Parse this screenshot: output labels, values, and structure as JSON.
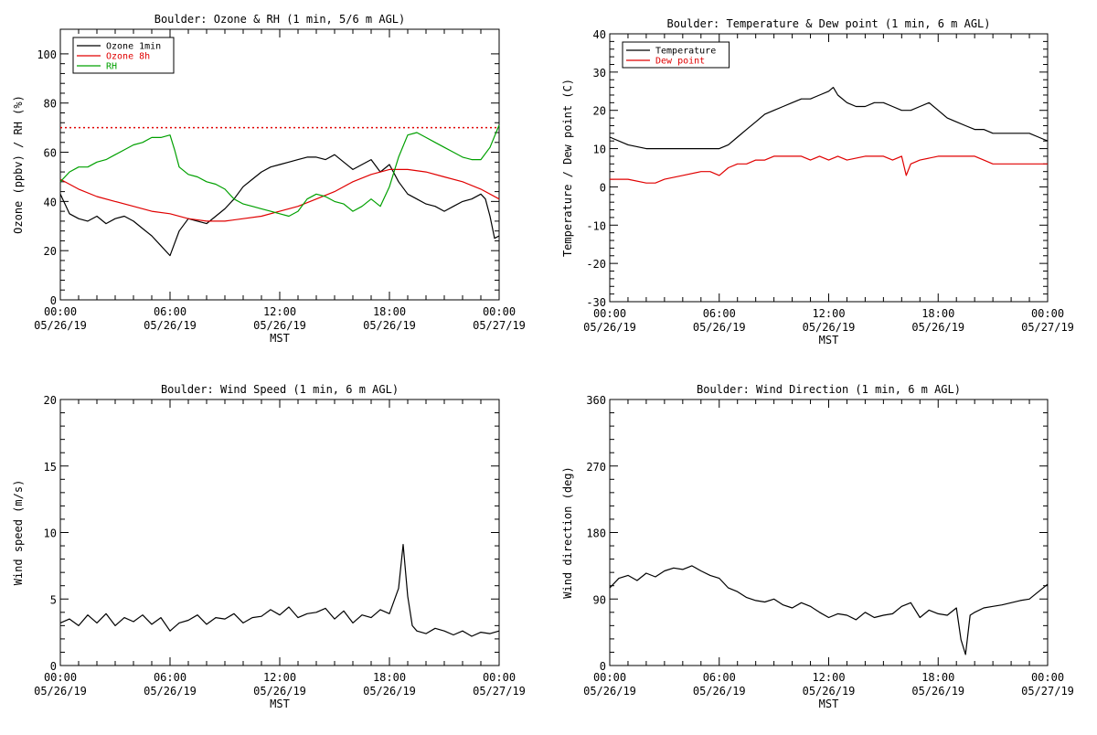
{
  "chart_data": [
    {
      "type": "line",
      "title": "Boulder: Ozone & RH (1 min, 5/6 m AGL)",
      "xlabel": "MST",
      "ylabel": "Ozone (ppbv) / RH (%)",
      "ylim": [
        0,
        110
      ],
      "yticks": [
        0,
        20,
        40,
        60,
        80,
        100
      ],
      "x_tick_labels": [
        {
          "time": "00:00",
          "date": "05/26/19"
        },
        {
          "time": "06:00",
          "date": "05/26/19"
        },
        {
          "time": "12:00",
          "date": "05/26/19"
        },
        {
          "time": "18:00",
          "date": "05/26/19"
        },
        {
          "time": "00:00",
          "date": "05/27/19"
        }
      ],
      "legend": "top-left",
      "reference_line": {
        "y": 70,
        "color": "#e00000",
        "style": "dotted"
      },
      "series": [
        {
          "name": "Ozone 1min",
          "color": "#000000",
          "x": [
            0,
            0.5,
            1,
            1.5,
            2,
            2.5,
            3,
            3.5,
            4,
            4.5,
            5,
            5.5,
            6,
            6.5,
            7,
            7.5,
            8,
            8.5,
            9,
            9.5,
            10,
            10.5,
            11,
            11.5,
            12,
            12.5,
            13,
            13.5,
            14,
            14.5,
            15,
            15.5,
            16,
            16.5,
            17,
            17.5,
            18,
            18.5,
            19,
            19.5,
            20,
            20.5,
            21,
            21.5,
            22,
            22.5,
            23,
            23.25,
            23.5,
            23.75,
            24
          ],
          "y": [
            43,
            35,
            33,
            32,
            34,
            31,
            33,
            34,
            32,
            29,
            26,
            22,
            18,
            28,
            33,
            32,
            31,
            34,
            37,
            41,
            46,
            49,
            52,
            54,
            55,
            56,
            57,
            58,
            58,
            57,
            59,
            56,
            53,
            55,
            57,
            52,
            55,
            48,
            43,
            41,
            39,
            38,
            36,
            38,
            40,
            41,
            43,
            41,
            34,
            25,
            26
          ]
        },
        {
          "name": "Ozone 8h",
          "color": "#e00000",
          "x": [
            0,
            1,
            2,
            3,
            4,
            5,
            6,
            7,
            8,
            9,
            10,
            11,
            12,
            13,
            14,
            15,
            16,
            17,
            18,
            19,
            20,
            21,
            22,
            23,
            24
          ],
          "y": [
            49,
            45,
            42,
            40,
            38,
            36,
            35,
            33,
            32,
            32,
            33,
            34,
            36,
            38,
            41,
            44,
            48,
            51,
            53,
            53,
            52,
            50,
            48,
            45,
            41
          ]
        },
        {
          "name": "RH",
          "color": "#00a000",
          "x": [
            0,
            0.5,
            1,
            1.5,
            2,
            2.5,
            3,
            3.5,
            4,
            4.5,
            5,
            5.5,
            6,
            6.25,
            6.5,
            7,
            7.5,
            8,
            8.5,
            9,
            9.5,
            10,
            10.5,
            11,
            11.5,
            12,
            12.5,
            13,
            13.5,
            14,
            14.5,
            15,
            15.5,
            16,
            16.5,
            17,
            17.5,
            18,
            18.5,
            19,
            19.5,
            20,
            20.5,
            21,
            21.5,
            22,
            22.5,
            23,
            23.5,
            24
          ],
          "y": [
            48,
            52,
            54,
            54,
            56,
            57,
            59,
            61,
            63,
            64,
            66,
            66,
            67,
            61,
            54,
            51,
            50,
            48,
            47,
            45,
            41,
            39,
            38,
            37,
            36,
            35,
            34,
            36,
            41,
            43,
            42,
            40,
            39,
            36,
            38,
            41,
            38,
            46,
            58,
            67,
            68,
            66,
            64,
            62,
            60,
            58,
            57,
            57,
            62,
            71
          ]
        }
      ]
    },
    {
      "type": "line",
      "title": "Boulder: Temperature & Dew point (1 min, 6 m AGL)",
      "xlabel": "MST",
      "ylabel": "Temperature / Dew point (C)",
      "ylim": [
        -30,
        40
      ],
      "yticks": [
        -30,
        -20,
        -10,
        0,
        10,
        20,
        30,
        40
      ],
      "x_tick_labels": [
        {
          "time": "00:00",
          "date": "05/26/19"
        },
        {
          "time": "06:00",
          "date": "05/26/19"
        },
        {
          "time": "12:00",
          "date": "05/26/19"
        },
        {
          "time": "18:00",
          "date": "05/26/19"
        },
        {
          "time": "00:00",
          "date": "05/27/19"
        }
      ],
      "legend": "top-left",
      "series": [
        {
          "name": "Temperature",
          "color": "#000000",
          "x": [
            0,
            1,
            2,
            3,
            4,
            5,
            6,
            6.5,
            7,
            7.5,
            8,
            8.5,
            9,
            9.5,
            10,
            10.5,
            11,
            11.5,
            12,
            12.25,
            12.5,
            13,
            13.5,
            14,
            14.5,
            15,
            15.5,
            16,
            16.5,
            17,
            17.5,
            18,
            18.5,
            19,
            19.5,
            20,
            20.5,
            21,
            21.5,
            22,
            22.5,
            23,
            23.5,
            24
          ],
          "y": [
            13,
            11,
            10,
            10,
            10,
            10,
            10,
            11,
            13,
            15,
            17,
            19,
            20,
            21,
            22,
            23,
            23,
            24,
            25,
            26,
            24,
            22,
            21,
            21,
            22,
            22,
            21,
            20,
            20,
            21,
            22,
            20,
            18,
            17,
            16,
            15,
            15,
            14,
            14,
            14,
            14,
            14,
            13,
            12
          ]
        },
        {
          "name": "Dew point",
          "color": "#e00000",
          "x": [
            0,
            1,
            2,
            2.5,
            3,
            4,
            5,
            5.5,
            6,
            6.5,
            7,
            7.5,
            8,
            8.5,
            9,
            9.5,
            10,
            10.5,
            11,
            11.5,
            12,
            12.5,
            13,
            14,
            15,
            15.5,
            16,
            16.25,
            16.5,
            17,
            18,
            19,
            20,
            20.5,
            21,
            22,
            23,
            24
          ],
          "y": [
            2,
            2,
            1,
            1,
            2,
            3,
            4,
            4,
            3,
            5,
            6,
            6,
            7,
            7,
            8,
            8,
            8,
            8,
            7,
            8,
            7,
            8,
            7,
            8,
            8,
            7,
            8,
            3,
            6,
            7,
            8,
            8,
            8,
            7,
            6,
            6,
            6,
            6
          ]
        }
      ]
    },
    {
      "type": "line",
      "title": "Boulder: Wind Speed (1 min, 6 m AGL)",
      "xlabel": "MST",
      "ylabel": "Wind speed (m/s)",
      "ylim": [
        0,
        20
      ],
      "yticks": [
        0,
        5,
        10,
        15,
        20
      ],
      "x_tick_labels": [
        {
          "time": "00:00",
          "date": "05/26/19"
        },
        {
          "time": "06:00",
          "date": "05/26/19"
        },
        {
          "time": "12:00",
          "date": "05/26/19"
        },
        {
          "time": "18:00",
          "date": "05/26/19"
        },
        {
          "time": "00:00",
          "date": "05/27/19"
        }
      ],
      "legend": "none",
      "series": [
        {
          "color": "#000000",
          "x": [
            0,
            0.5,
            1,
            1.5,
            2,
            2.5,
            3,
            3.5,
            4,
            4.5,
            5,
            5.5,
            6,
            6.5,
            7,
            7.5,
            8,
            8.5,
            9,
            9.5,
            10,
            10.5,
            11,
            11.5,
            12,
            12.5,
            13,
            13.5,
            14,
            14.5,
            15,
            15.5,
            16,
            16.5,
            17,
            17.5,
            18,
            18.5,
            18.75,
            19,
            19.25,
            19.5,
            20,
            20.5,
            21,
            21.5,
            22,
            22.5,
            23,
            23.5,
            24
          ],
          "y": [
            3.2,
            3.5,
            3,
            3.8,
            3.2,
            3.9,
            3,
            3.6,
            3.3,
            3.8,
            3.1,
            3.6,
            2.6,
            3.2,
            3.4,
            3.8,
            3.1,
            3.6,
            3.5,
            3.9,
            3.2,
            3.6,
            3.7,
            4.2,
            3.8,
            4.4,
            3.6,
            3.9,
            4,
            4.3,
            3.5,
            4.1,
            3.2,
            3.8,
            3.6,
            4.2,
            3.9,
            5.8,
            9.1,
            5.2,
            3,
            2.6,
            2.4,
            2.8,
            2.6,
            2.3,
            2.6,
            2.2,
            2.5,
            2.4,
            2.6
          ]
        }
      ]
    },
    {
      "type": "line",
      "title": "Boulder: Wind Direction (1 min, 6 m AGL)",
      "xlabel": "MST",
      "ylabel": "Wind direction (deg)",
      "ylim": [
        0,
        360
      ],
      "yticks": [
        0,
        90,
        180,
        270,
        360
      ],
      "x_tick_labels": [
        {
          "time": "00:00",
          "date": "05/26/19"
        },
        {
          "time": "06:00",
          "date": "05/26/19"
        },
        {
          "time": "12:00",
          "date": "05/26/19"
        },
        {
          "time": "18:00",
          "date": "05/26/19"
        },
        {
          "time": "00:00",
          "date": "05/27/19"
        }
      ],
      "legend": "none",
      "series": [
        {
          "color": "#000000",
          "x": [
            0,
            0.5,
            1,
            1.5,
            2,
            2.5,
            3,
            3.5,
            4,
            4.5,
            5,
            5.5,
            6,
            6.5,
            7,
            7.5,
            8,
            8.5,
            9,
            9.5,
            10,
            10.5,
            11,
            11.5,
            12,
            12.5,
            13,
            13.5,
            14,
            14.5,
            15,
            15.5,
            16,
            16.5,
            17,
            17.5,
            18,
            18.5,
            19,
            19.25,
            19.5,
            19.75,
            20,
            20.5,
            21,
            21.5,
            22,
            22.5,
            23,
            23.5,
            24
          ],
          "y": [
            105,
            118,
            122,
            115,
            125,
            120,
            128,
            132,
            130,
            135,
            128,
            122,
            118,
            105,
            100,
            92,
            88,
            86,
            90,
            82,
            78,
            85,
            80,
            72,
            65,
            70,
            68,
            62,
            72,
            65,
            68,
            70,
            80,
            85,
            65,
            75,
            70,
            68,
            78,
            35,
            15,
            68,
            72,
            78,
            80,
            82,
            85,
            88,
            90,
            100,
            110
          ]
        }
      ]
    }
  ]
}
